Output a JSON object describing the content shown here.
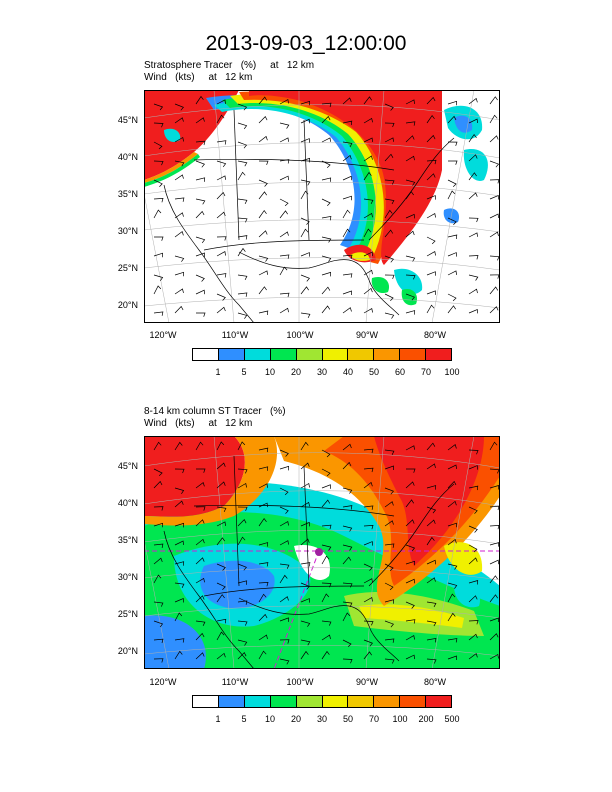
{
  "title": "2013-09-03_12:00:00",
  "panel1": {
    "label_line1": "Stratosphere Tracer   (%)     at   12 km",
    "label_line2": "Wind   (kts)     at   12 km",
    "lat_labels": [
      "45°N",
      "40°N",
      "35°N",
      "30°N",
      "25°N",
      "20°N"
    ],
    "lon_labels": [
      "120°W",
      "110°W",
      "100°W",
      "90°W",
      "80°W"
    ],
    "colorbar": {
      "colors": [
        "#ffffff",
        "#2f8fff",
        "#00dcdc",
        "#00e650",
        "#a0e632",
        "#f0f000",
        "#f0c800",
        "#fa9600",
        "#fa5000",
        "#f01e1e"
      ],
      "labels": [
        "1",
        "5",
        "10",
        "20",
        "30",
        "40",
        "50",
        "60",
        "70",
        "100"
      ]
    }
  },
  "panel2": {
    "label_line1": "8-14 km column ST Tracer   (%)",
    "label_line2": "Wind   (kts)     at   12 km",
    "lat_labels": [
      "45°N",
      "40°N",
      "35°N",
      "30°N",
      "25°N",
      "20°N"
    ],
    "lon_labels": [
      "120°W",
      "110°W",
      "100°W",
      "90°W",
      "80°W"
    ],
    "colorbar": {
      "colors": [
        "#ffffff",
        "#2f8fff",
        "#00dcdc",
        "#00e650",
        "#a0e632",
        "#f0f000",
        "#f0c800",
        "#fa9600",
        "#fa5000",
        "#f01e1e"
      ],
      "labels": [
        "1",
        "5",
        "10",
        "20",
        "30",
        "50",
        "70",
        "100",
        "200",
        "500"
      ]
    }
  }
}
